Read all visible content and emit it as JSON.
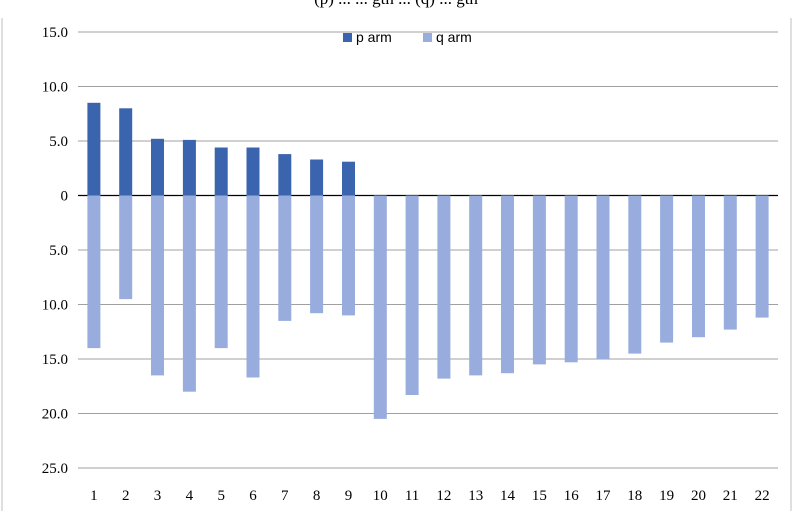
{
  "title_fragment": "(p) ... ... gth ... (q) ... gth",
  "chart_data": {
    "type": "bar",
    "orientation": "diverging-vertical",
    "categories": [
      "1",
      "2",
      "3",
      "4",
      "5",
      "6",
      "7",
      "8",
      "9",
      "10",
      "11",
      "12",
      "13",
      "14",
      "15",
      "16",
      "17",
      "18",
      "19",
      "20",
      "21",
      "22"
    ],
    "series": [
      {
        "name": "p arm",
        "color": "#3a64ad",
        "direction": "up",
        "values": [
          8.5,
          8.0,
          5.2,
          5.1,
          4.4,
          4.4,
          3.8,
          3.3,
          3.1,
          null,
          null,
          null,
          null,
          null,
          null,
          null,
          null,
          null,
          null,
          null,
          null,
          null
        ]
      },
      {
        "name": "q arm",
        "color": "#98acde",
        "direction": "down",
        "values": [
          14.0,
          9.5,
          16.5,
          18.0,
          14.0,
          16.7,
          11.5,
          10.8,
          11.0,
          20.5,
          18.3,
          16.8,
          16.5,
          16.3,
          15.5,
          15.3,
          15.0,
          14.5,
          13.5,
          13.0,
          12.3,
          11.2
        ]
      }
    ],
    "y_axis": {
      "ticks": [
        15.0,
        10.0,
        5.0,
        0,
        -5.0,
        -10.0,
        -15.0,
        -20.0,
        -25.0
      ],
      "tick_labels": [
        "15.0",
        "10.0",
        "5.0",
        "0",
        "5.0",
        "10.0",
        "15.0",
        "20.0",
        "25.0"
      ],
      "ylim": [
        -25,
        15
      ]
    },
    "legend": {
      "position": "top-center",
      "entries": [
        "p arm",
        "q arm"
      ]
    },
    "grid": "horizontal"
  }
}
